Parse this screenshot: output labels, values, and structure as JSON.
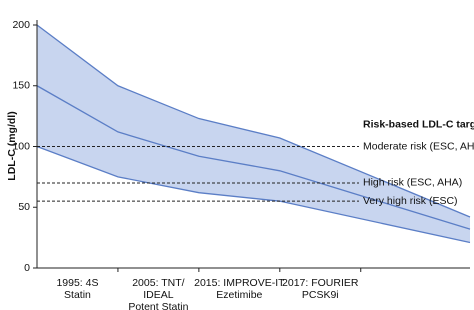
{
  "chart_data": {
    "type": "band",
    "y_label": "LDL-C (mg/dl)",
    "categories": [
      [
        "1995: 4S",
        "Statin"
      ],
      [
        "2005: TNT/",
        "IDEAL",
        "Potent Statin"
      ],
      [
        "2015: IMPROVE-IT",
        "Ezetimibe"
      ],
      [
        "2017: FOURIER",
        "PCSK9i"
      ]
    ],
    "x": [
      0,
      1,
      2,
      3,
      5.35
    ],
    "xlim": [
      0,
      5.35
    ],
    "ylim": [
      0,
      200
    ],
    "yticks": [
      0,
      50,
      100,
      150,
      200
    ],
    "band_color": "#c8d5ef",
    "series": [
      {
        "color": "#5b7ec6",
        "values": [
          200,
          150,
          123,
          107,
          42
        ]
      },
      {
        "color": "#5b7ec6",
        "values": [
          150,
          112,
          92,
          80,
          32
        ]
      },
      {
        "color": "#5b7ec6",
        "values": [
          100,
          75,
          62,
          55,
          21
        ]
      }
    ],
    "reference_title": "Risk-based LDL-C target",
    "reference_lines": [
      {
        "value": 100,
        "label": "Moderate risk (ESC, AHA)"
      },
      {
        "value": 70,
        "label": "High risk (ESC, AHA)"
      },
      {
        "value": 55,
        "label": "Very high risk (ESC)"
      }
    ]
  }
}
